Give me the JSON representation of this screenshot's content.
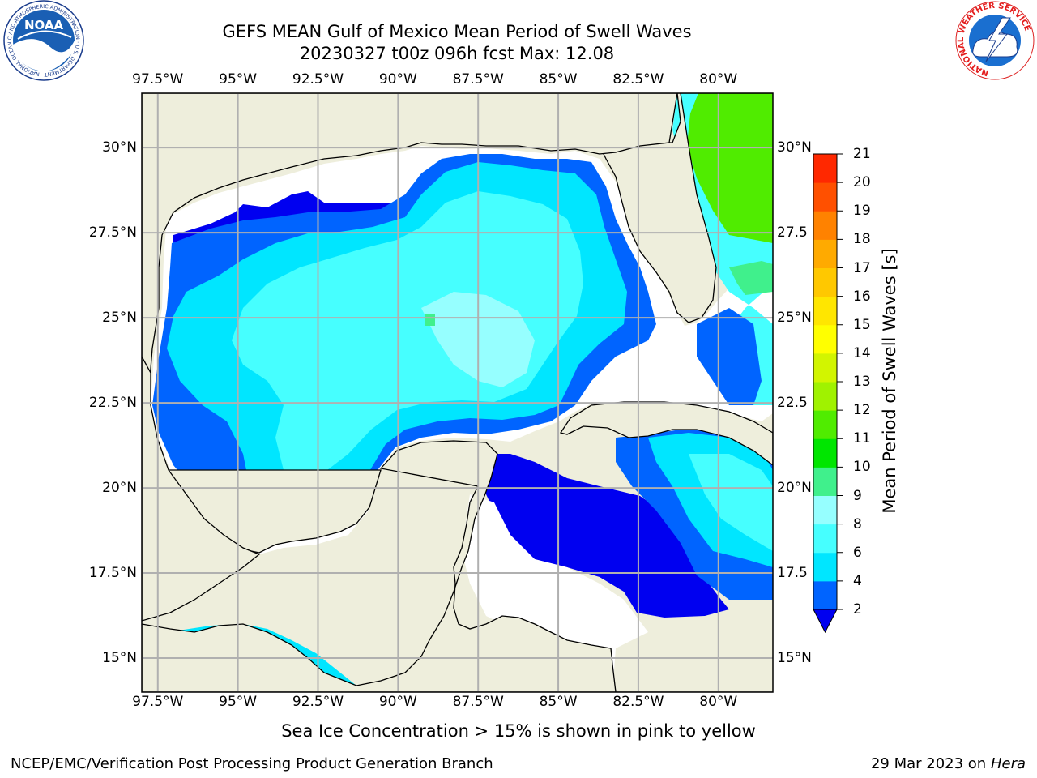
{
  "header": {
    "title_line1": "GEFS MEAN Gulf of Mexico Mean Period of Swell Waves",
    "title_line2": "20230327 t00z 096h fcst   Max: 12.08"
  },
  "logos": {
    "left_text": "NOAA",
    "left_ring_text": "NATIONAL OCEANIC AND ATMOSPHERIC ADMINISTRATION · U.S. DEPARTMENT OF COMMERCE",
    "right_ring_text": "NATIONAL WEATHER SERVICE"
  },
  "map": {
    "lon_ticks": [
      "97.5°W",
      "95°W",
      "92.5°W",
      "90°W",
      "87.5°W",
      "85°W",
      "82.5°W",
      "80°W"
    ],
    "lat_ticks_left": [
      "30°N",
      "27.5°N",
      "25°N",
      "22.5°N",
      "20°N",
      "17.5°N",
      "15°N"
    ],
    "lat_ticks_right": [
      "30°N",
      "27.5",
      "25°N",
      "22.5",
      "20°N",
      "17.5",
      "15°N"
    ],
    "lon_values": [
      -97.5,
      -95,
      -92.5,
      -90,
      -87.5,
      -85,
      -82.5,
      -80
    ],
    "lat_values": [
      30,
      27.5,
      25,
      22.5,
      20,
      17.5,
      15
    ],
    "extent": {
      "lon_min": -98,
      "lon_max": -78.3,
      "lat_min": 14,
      "lat_max": 31.6
    },
    "land_color": "#eeeedc",
    "grid_color": "#b0b0b0"
  },
  "colorbar": {
    "label": "Mean Period of Swell Waves [s]",
    "ticks": [
      "2",
      "4",
      "6",
      "8",
      "9",
      "10",
      "11",
      "12",
      "13",
      "14",
      "15",
      "16",
      "17",
      "18",
      "19",
      "20",
      "21"
    ],
    "colors": [
      "#0064ff",
      "#00e6ff",
      "#46ffff",
      "#96ffff",
      "#40f08c",
      "#00e600",
      "#50ec00",
      "#a0f200",
      "#d2f500",
      "#ffff00",
      "#ffe600",
      "#ffc800",
      "#ffaa00",
      "#ff8200",
      "#ff5000",
      "#ff2800",
      "#ff0000"
    ],
    "under_color": "#0000f0"
  },
  "footnote": "Sea Ice Concentration > 15% is shown in pink to yellow",
  "credit_left": "NCEP/EMC/Verification Post Processing Product Generation Branch",
  "credit_right_date": "29 Mar 2023 on",
  "credit_right_host": "Hera"
}
